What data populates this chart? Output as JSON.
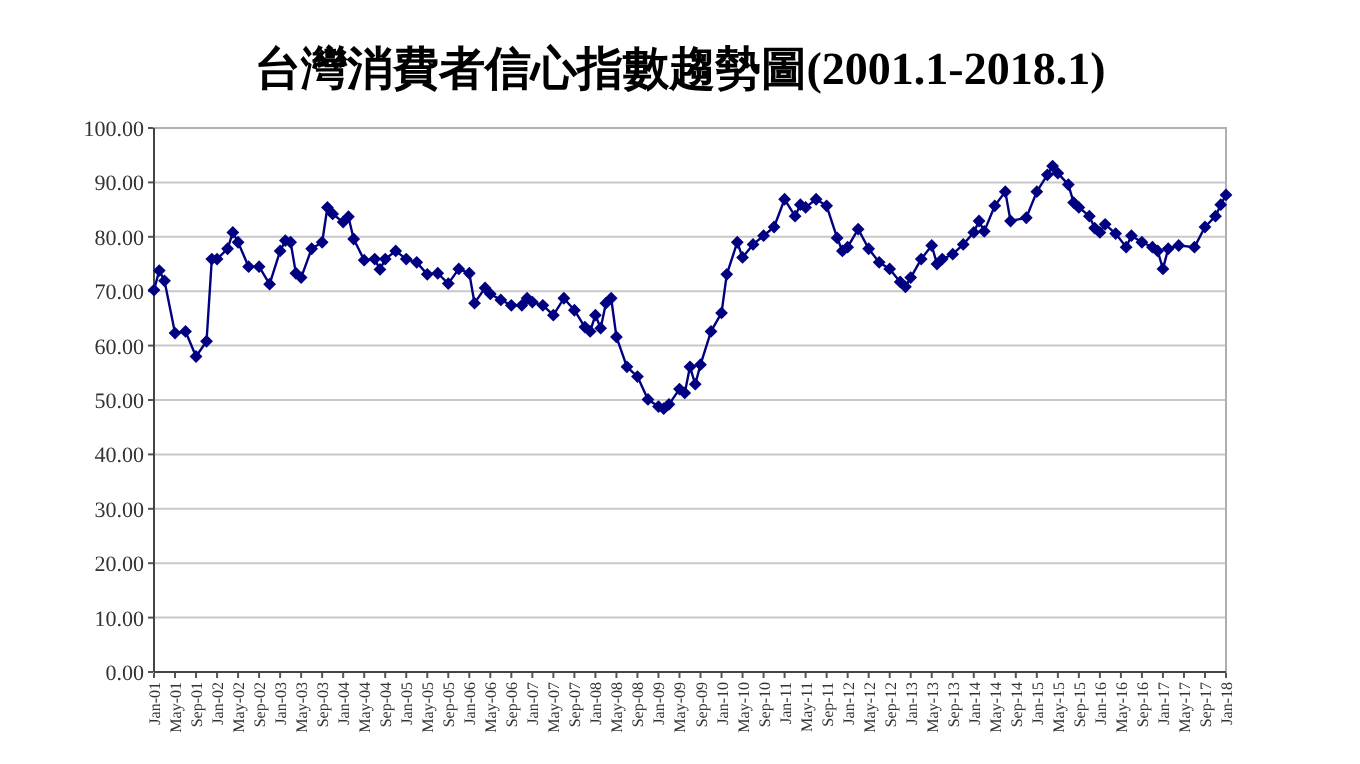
{
  "chart_data": {
    "type": "line",
    "title": "台灣消費者信心指數趨勢圖(2001.1-2018.1)",
    "x": [
      "2001-01",
      "2001-02",
      "2001-03",
      "2001-05",
      "2001-07",
      "2001-09",
      "2001-11",
      "2001-12",
      "2002-01",
      "2002-03",
      "2002-04",
      "2002-05",
      "2002-07",
      "2002-09",
      "2002-11",
      "2003-01",
      "2003-02",
      "2003-03",
      "2003-04",
      "2003-05",
      "2003-07",
      "2003-09",
      "2003-10",
      "2003-11",
      "2004-01",
      "2004-02",
      "2004-03",
      "2004-05",
      "2004-07",
      "2004-08",
      "2004-09",
      "2004-11",
      "2005-01",
      "2005-03",
      "2005-05",
      "2005-07",
      "2005-09",
      "2005-11",
      "2006-01",
      "2006-02",
      "2006-04",
      "2006-05",
      "2006-07",
      "2006-09",
      "2006-11",
      "2006-12",
      "2007-01",
      "2007-03",
      "2007-05",
      "2007-07",
      "2007-09",
      "2007-11",
      "2007-12",
      "2008-01",
      "2008-02",
      "2008-03",
      "2008-04",
      "2008-05",
      "2008-07",
      "2008-09",
      "2008-11",
      "2009-01",
      "2009-02",
      "2009-03",
      "2009-05",
      "2009-06",
      "2009-07",
      "2009-08",
      "2009-09",
      "2009-11",
      "2010-01",
      "2010-02",
      "2010-04",
      "2010-05",
      "2010-07",
      "2010-09",
      "2010-11",
      "2011-01",
      "2011-03",
      "2011-04",
      "2011-05",
      "2011-07",
      "2011-09",
      "2011-11",
      "2011-12",
      "2012-01",
      "2012-03",
      "2012-05",
      "2012-07",
      "2012-09",
      "2012-11",
      "2012-12",
      "2013-01",
      "2013-03",
      "2013-05",
      "2013-06",
      "2013-07",
      "2013-09",
      "2013-11",
      "2014-01",
      "2014-02",
      "2014-03",
      "2014-05",
      "2014-07",
      "2014-08",
      "2014-11",
      "2015-01",
      "2015-03",
      "2015-04",
      "2015-05",
      "2015-07",
      "2015-08",
      "2015-09",
      "2015-11",
      "2015-12",
      "2016-01",
      "2016-02",
      "2016-04",
      "2016-06",
      "2016-07",
      "2016-09",
      "2016-11",
      "2016-12",
      "2017-01",
      "2017-02",
      "2017-04",
      "2017-07",
      "2017-09",
      "2017-11",
      "2017-12",
      "2018-01"
    ],
    "series": [
      {
        "color": "#000080",
        "values": [
          70.2,
          73.8,
          71.9,
          62.3,
          62.6,
          58.0,
          60.8,
          75.9,
          75.9,
          77.8,
          80.8,
          79.0,
          74.5,
          74.5,
          71.3,
          77.4,
          79.3,
          79.0,
          73.3,
          72.5,
          77.8,
          79.0,
          85.4,
          84.2,
          82.7,
          83.7,
          79.6,
          75.7,
          75.9,
          74.0,
          75.9,
          77.4,
          75.9,
          75.3,
          73.1,
          73.3,
          71.4,
          74.1,
          73.3,
          67.8,
          70.6,
          69.5,
          68.4,
          67.4,
          67.4,
          68.7,
          68.0,
          67.4,
          65.6,
          68.7,
          66.5,
          63.4,
          62.6,
          65.6,
          63.2,
          67.8,
          68.7,
          61.6,
          56.1,
          54.3,
          50.1,
          48.8,
          48.4,
          49.2,
          52.0,
          51.3,
          56.1,
          52.9,
          56.5,
          62.6,
          66.0,
          73.1,
          79.0,
          76.2,
          78.6,
          80.2,
          81.8,
          86.9,
          83.8,
          85.9,
          85.4,
          86.9,
          85.7,
          79.8,
          77.4,
          78.1,
          81.4,
          77.8,
          75.3,
          74.1,
          71.7,
          70.8,
          72.5,
          75.9,
          78.4,
          75.0,
          75.9,
          76.8,
          78.6,
          80.8,
          82.9,
          81.0,
          85.7,
          88.3,
          82.9,
          83.5,
          88.3,
          91.4,
          93.0,
          91.7,
          89.6,
          86.3,
          85.4,
          83.8,
          81.6,
          80.8,
          82.3,
          80.6,
          78.1,
          80.2,
          79.0,
          78.1,
          77.4,
          74.1,
          77.8,
          78.4,
          78.1,
          81.8,
          83.8,
          85.9,
          87.7
        ]
      }
    ],
    "xlim": [
      "2001-01",
      "2018-01"
    ],
    "xticks": [
      {
        "value": "2001-01",
        "label": "Jan-01"
      },
      {
        "value": "2001-05",
        "label": "May-01"
      },
      {
        "value": "2001-09",
        "label": "Sep-01"
      },
      {
        "value": "2002-01",
        "label": "Jan-02"
      },
      {
        "value": "2002-05",
        "label": "May-02"
      },
      {
        "value": "2002-09",
        "label": "Sep-02"
      },
      {
        "value": "2003-01",
        "label": "Jan-03"
      },
      {
        "value": "2003-05",
        "label": "May-03"
      },
      {
        "value": "2003-09",
        "label": "Sep-03"
      },
      {
        "value": "2004-01",
        "label": "Jan-04"
      },
      {
        "value": "2004-05",
        "label": "May-04"
      },
      {
        "value": "2004-09",
        "label": "Sep-04"
      },
      {
        "value": "2005-01",
        "label": "Jan-05"
      },
      {
        "value": "2005-05",
        "label": "May-05"
      },
      {
        "value": "2005-09",
        "label": "Sep-05"
      },
      {
        "value": "2006-01",
        "label": "Jan-06"
      },
      {
        "value": "2006-05",
        "label": "May-06"
      },
      {
        "value": "2006-09",
        "label": "Sep-06"
      },
      {
        "value": "2007-01",
        "label": "Jan-07"
      },
      {
        "value": "2007-05",
        "label": "May-07"
      },
      {
        "value": "2007-09",
        "label": "Sep-07"
      },
      {
        "value": "2008-01",
        "label": "Jan-08"
      },
      {
        "value": "2008-05",
        "label": "May-08"
      },
      {
        "value": "2008-09",
        "label": "Sep-08"
      },
      {
        "value": "2009-01",
        "label": "Jan-09"
      },
      {
        "value": "2009-05",
        "label": "May-09"
      },
      {
        "value": "2009-09",
        "label": "Sep-09"
      },
      {
        "value": "2010-01",
        "label": "Jan-10"
      },
      {
        "value": "2010-05",
        "label": "May-10"
      },
      {
        "value": "2010-09",
        "label": "Sep-10"
      },
      {
        "value": "2011-01",
        "label": "Jan-11"
      },
      {
        "value": "2011-05",
        "label": "May-11"
      },
      {
        "value": "2011-09",
        "label": "Sep-11"
      },
      {
        "value": "2012-01",
        "label": "Jan-12"
      },
      {
        "value": "2012-05",
        "label": "May-12"
      },
      {
        "value": "2012-09",
        "label": "Sep-12"
      },
      {
        "value": "2013-01",
        "label": "Jan-13"
      },
      {
        "value": "2013-05",
        "label": "May-13"
      },
      {
        "value": "2013-09",
        "label": "Sep-13"
      },
      {
        "value": "2014-01",
        "label": "Jan-14"
      },
      {
        "value": "2014-05",
        "label": "May-14"
      },
      {
        "value": "2014-09",
        "label": "Sep-14"
      },
      {
        "value": "2015-01",
        "label": "Jan-15"
      },
      {
        "value": "2015-05",
        "label": "May-15"
      },
      {
        "value": "2015-09",
        "label": "Sep-15"
      },
      {
        "value": "2016-01",
        "label": "Jan-16"
      },
      {
        "value": "2016-05",
        "label": "May-16"
      },
      {
        "value": "2016-09",
        "label": "Sep-16"
      },
      {
        "value": "2017-01",
        "label": "Jan-17"
      },
      {
        "value": "2017-05",
        "label": "May-17"
      },
      {
        "value": "2017-09",
        "label": "Sep-17"
      },
      {
        "value": "2018-01",
        "label": "Jan-18"
      }
    ],
    "ylim": [
      0,
      100
    ],
    "yticks": [
      {
        "value": 0,
        "label": "0.00"
      },
      {
        "value": 10,
        "label": "10.00"
      },
      {
        "value": 20,
        "label": "20.00"
      },
      {
        "value": 30,
        "label": "30.00"
      },
      {
        "value": 40,
        "label": "40.00"
      },
      {
        "value": 50,
        "label": "50.00"
      },
      {
        "value": 60,
        "label": "60.00"
      },
      {
        "value": 70,
        "label": "70.00"
      },
      {
        "value": 80,
        "label": "80.00"
      },
      {
        "value": 90,
        "label": "90.00"
      },
      {
        "value": 100,
        "label": "100.00"
      }
    ],
    "grid": "y",
    "marker": "diamond",
    "line_style": "solid"
  }
}
